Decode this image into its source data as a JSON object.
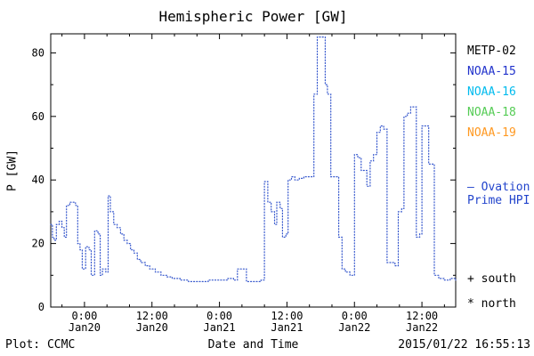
{
  "title": "Hemispheric Power [GW]",
  "footer": {
    "plot_credit": "Plot: CCMC",
    "xlabel": "Date and Time",
    "timestamp": "2015/01/22 16:55:13"
  },
  "legend": {
    "satellites": [
      {
        "label": "METP-02",
        "color": "#000000"
      },
      {
        "label": "NOAA-15",
        "color": "#2233cc"
      },
      {
        "label": "NOAA-16",
        "color": "#00bbee"
      },
      {
        "label": "NOAA-18",
        "color": "#55cc55"
      },
      {
        "label": "NOAA-19",
        "color": "#ff9922"
      }
    ],
    "model": {
      "lines": [
        "— Ovation",
        "Prime HPI"
      ],
      "color": "#2244cc"
    },
    "markers": [
      {
        "label": "+ south",
        "color": "#000000"
      },
      {
        "label": "* north",
        "color": "#000000"
      }
    ]
  },
  "chart_data": {
    "type": "line",
    "title": "Hemispheric Power [GW]",
    "xlabel": "Date and Time",
    "ylabel": "P [GW]",
    "ylim": [
      0,
      86
    ],
    "xlim_hours": [
      -6,
      66
    ],
    "x_ref": "hours from 2015 Jan 20 00:00 UT",
    "line_color": "#3355cc",
    "line_style": "dotted-step",
    "grid": false,
    "legend_position": "right",
    "yticks": [
      0,
      20,
      40,
      60,
      80
    ],
    "xticks": [
      {
        "h": 0,
        "time": "0:00",
        "date": "Jan20"
      },
      {
        "h": 12,
        "time": "12:00",
        "date": "Jan20"
      },
      {
        "h": 24,
        "time": "0:00",
        "date": "Jan21"
      },
      {
        "h": 36,
        "time": "12:00",
        "date": "Jan21"
      },
      {
        "h": 48,
        "time": "0:00",
        "date": "Jan22"
      },
      {
        "h": 60,
        "time": "12:00",
        "date": "Jan22"
      }
    ],
    "series": [
      {
        "name": "Ovation Prime HPI",
        "points": [
          [
            -6,
            26
          ],
          [
            -5.7,
            22
          ],
          [
            -5.4,
            21
          ],
          [
            -5,
            26
          ],
          [
            -4.5,
            27
          ],
          [
            -4,
            25
          ],
          [
            -3.6,
            22
          ],
          [
            -3.2,
            32
          ],
          [
            -2.6,
            33
          ],
          [
            -2,
            33
          ],
          [
            -1.6,
            32
          ],
          [
            -1.2,
            20
          ],
          [
            -0.8,
            18
          ],
          [
            -0.4,
            12
          ],
          [
            0.2,
            19
          ],
          [
            0.8,
            18
          ],
          [
            1.2,
            10
          ],
          [
            1.8,
            24
          ],
          [
            2.4,
            23
          ],
          [
            2.8,
            10
          ],
          [
            3.2,
            12
          ],
          [
            3.8,
            11
          ],
          [
            4.2,
            35
          ],
          [
            4.6,
            30
          ],
          [
            5.2,
            26
          ],
          [
            5.8,
            25
          ],
          [
            6.4,
            23
          ],
          [
            7,
            21
          ],
          [
            7.6,
            20
          ],
          [
            8.2,
            18
          ],
          [
            8.8,
            17
          ],
          [
            9.4,
            15
          ],
          [
            10,
            14
          ],
          [
            10.8,
            13
          ],
          [
            11.6,
            12
          ],
          [
            12.6,
            11
          ],
          [
            13.6,
            10
          ],
          [
            14.6,
            9.5
          ],
          [
            15.6,
            9
          ],
          [
            17,
            8.5
          ],
          [
            18.5,
            8
          ],
          [
            20.5,
            8
          ],
          [
            22,
            8.5
          ],
          [
            24,
            8.5
          ],
          [
            25.5,
            9
          ],
          [
            26.5,
            8.5
          ],
          [
            27.2,
            12
          ],
          [
            28.2,
            12
          ],
          [
            28.8,
            8
          ],
          [
            30,
            8
          ],
          [
            31.4,
            8.5
          ],
          [
            32,
            39.5
          ],
          [
            32.6,
            33
          ],
          [
            33.2,
            30
          ],
          [
            33.8,
            26
          ],
          [
            34.2,
            33
          ],
          [
            34.8,
            31
          ],
          [
            35.2,
            22
          ],
          [
            35.8,
            23
          ],
          [
            36.2,
            40
          ],
          [
            36.8,
            41
          ],
          [
            37.4,
            40
          ],
          [
            38.2,
            40.5
          ],
          [
            39,
            41
          ],
          [
            40,
            41
          ],
          [
            40.8,
            67
          ],
          [
            41.4,
            85
          ],
          [
            42.2,
            85
          ],
          [
            42.8,
            70
          ],
          [
            43.2,
            67
          ],
          [
            43.8,
            41
          ],
          [
            44.6,
            41
          ],
          [
            45.2,
            22
          ],
          [
            45.8,
            12
          ],
          [
            46.4,
            11
          ],
          [
            47.2,
            10
          ],
          [
            48,
            48
          ],
          [
            48.6,
            47
          ],
          [
            49.2,
            43
          ],
          [
            49.8,
            43
          ],
          [
            50.2,
            38
          ],
          [
            50.8,
            46
          ],
          [
            51.4,
            48
          ],
          [
            52,
            55
          ],
          [
            52.6,
            57
          ],
          [
            53.2,
            56
          ],
          [
            53.8,
            14
          ],
          [
            54.6,
            14
          ],
          [
            55.2,
            13
          ],
          [
            55.8,
            30
          ],
          [
            56.4,
            31
          ],
          [
            56.8,
            60
          ],
          [
            57.4,
            61
          ],
          [
            58,
            63
          ],
          [
            58.6,
            63
          ],
          [
            59,
            22
          ],
          [
            59.6,
            23
          ],
          [
            60,
            57
          ],
          [
            60.6,
            57
          ],
          [
            61.2,
            45
          ],
          [
            61.8,
            45
          ],
          [
            62.2,
            10
          ],
          [
            63,
            9
          ],
          [
            64,
            8.5
          ],
          [
            65,
            9
          ],
          [
            66,
            8.5
          ]
        ]
      }
    ]
  }
}
